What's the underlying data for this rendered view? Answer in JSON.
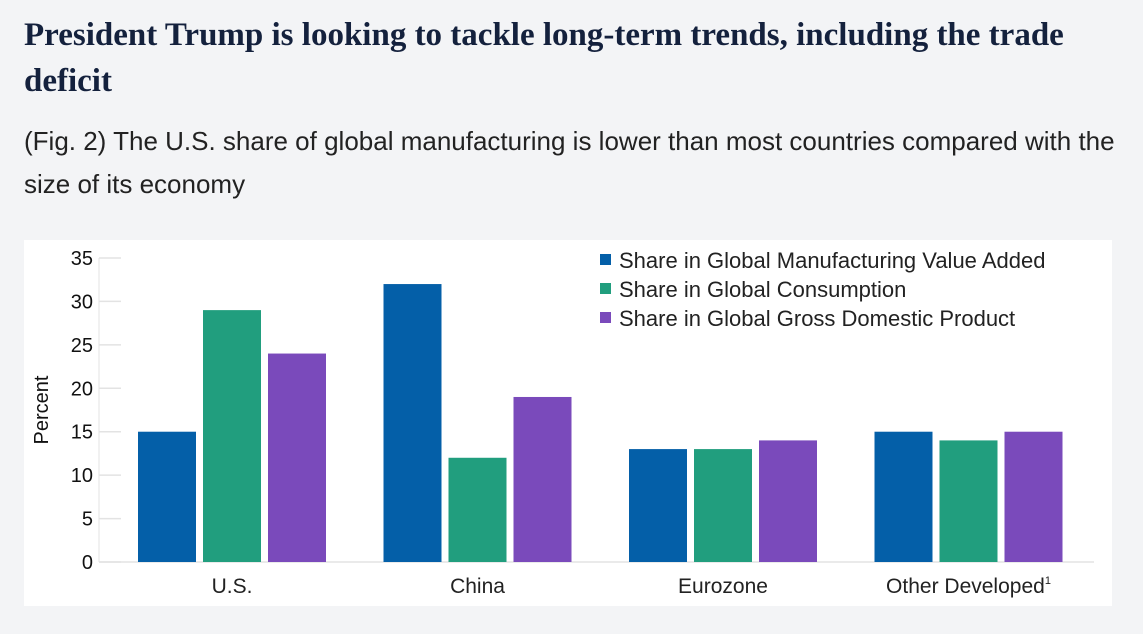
{
  "header": {
    "title": "President Trump is looking to tackle long-term trends, including the trade deficit",
    "subtitle": "(Fig. 2) The U.S. share of global manufacturing is lower than most countries compared with the size of its economy"
  },
  "chart_data": {
    "type": "bar",
    "title": "",
    "xlabel": "",
    "ylabel": "Percent",
    "ylim": [
      0,
      35
    ],
    "yticks": [
      0,
      5,
      10,
      15,
      20,
      25,
      30,
      35
    ],
    "categories": [
      "U.S.",
      "China",
      "Eurozone",
      "Other Developed"
    ],
    "category_footnote": {
      "Other Developed": "1"
    },
    "legend_position": "top-right",
    "series": [
      {
        "name": "Share in Global Manufacturing Value Added",
        "color": "#045fa8",
        "values": [
          15,
          32,
          13,
          15
        ]
      },
      {
        "name": "Share in Global Consumption",
        "color": "#219e7e",
        "values": [
          29,
          12,
          13,
          14
        ]
      },
      {
        "name": "Share in Global Gross Domestic Product",
        "color": "#7a4abb",
        "values": [
          24,
          19,
          14,
          15
        ]
      }
    ]
  }
}
